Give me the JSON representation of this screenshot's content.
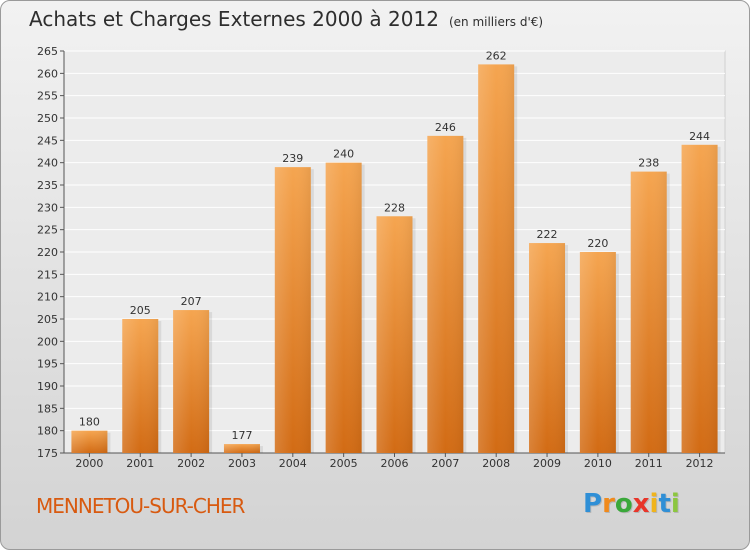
{
  "chart_data": {
    "type": "bar",
    "title": "Achats et Charges Externes 2000 à 2012",
    "subtitle": "(en milliers d'€)",
    "categories": [
      "2000",
      "2001",
      "2002",
      "2003",
      "2004",
      "2005",
      "2006",
      "2007",
      "2008",
      "2009",
      "2010",
      "2011",
      "2012"
    ],
    "values": [
      180,
      205,
      207,
      177,
      239,
      240,
      228,
      246,
      262,
      222,
      220,
      238,
      244
    ],
    "data_labels": [
      "180",
      "205",
      "207",
      "177",
      "239",
      "240",
      "228",
      "246",
      "262",
      "222",
      "220",
      "238",
      "244"
    ],
    "ylim": [
      175,
      265
    ],
    "yticks": [
      175,
      180,
      185,
      190,
      195,
      200,
      205,
      210,
      215,
      220,
      225,
      230,
      235,
      240,
      245,
      250,
      255,
      260,
      265
    ],
    "grid": true,
    "bar_color": "#f0923a"
  },
  "footer": {
    "town": "MENNETOU-SUR-CHER",
    "logo_letters": [
      "P",
      "r",
      "o",
      "x",
      "i",
      "t",
      "i"
    ],
    "logo_colors": [
      "#2f8fd6",
      "#f08a1c",
      "#3aa83a",
      "#e8352a",
      "#f0b41c",
      "#2f8fd6",
      "#8cc63f"
    ]
  }
}
